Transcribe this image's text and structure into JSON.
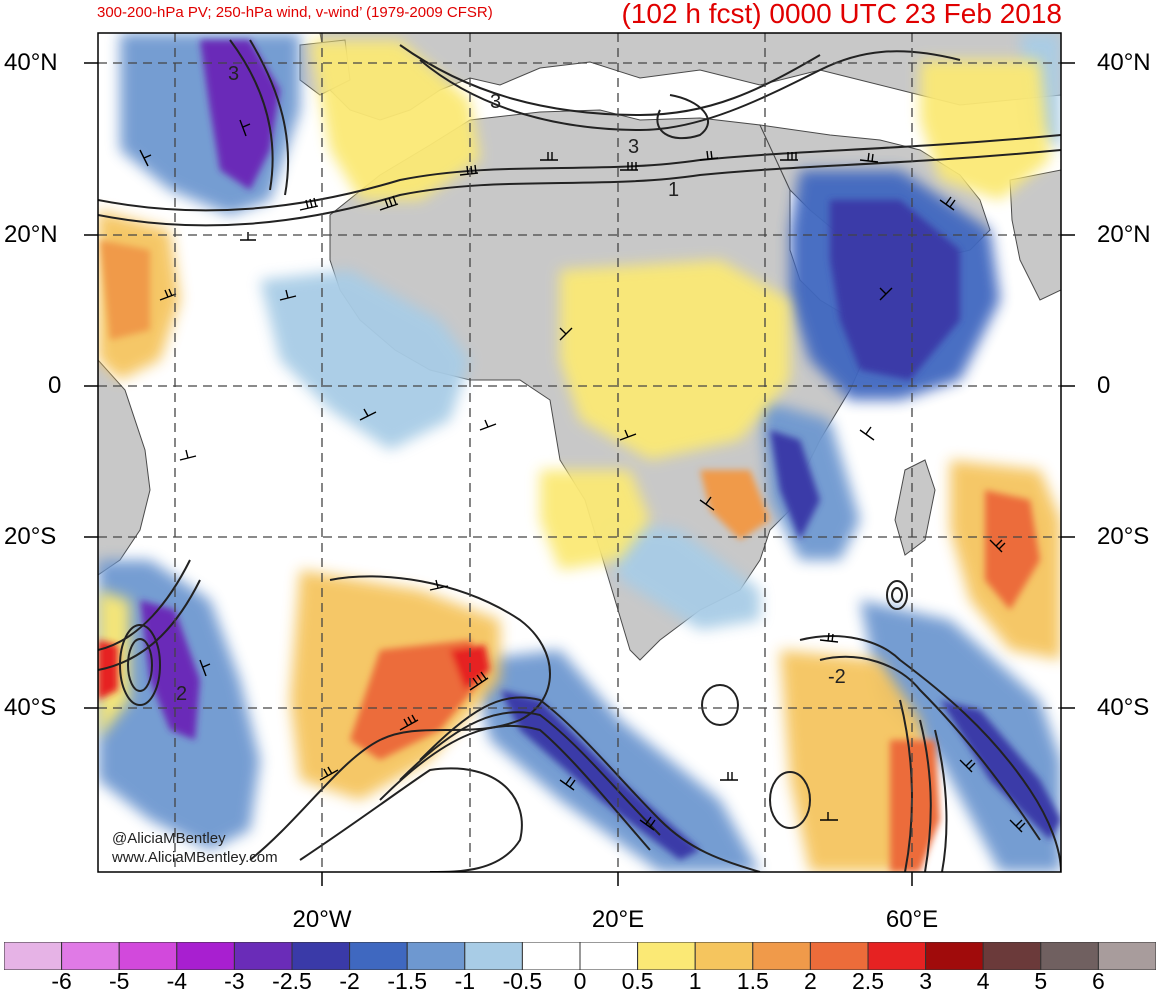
{
  "header": {
    "subtitle": "300-200-hPa PV; 250-hPa wind, v-wind’ (1979-2009 CFSR)",
    "title": "(102 h fcst) 0000 UTC 23 Feb 2018"
  },
  "map": {
    "region": "Africa and surrounding Atlantic / Indian Oceans",
    "lat_labels_left": [
      "40°N",
      "20°N",
      "0",
      "20°S",
      "40°S"
    ],
    "lat_labels_right": [
      "40°N",
      "20°N",
      "0",
      "20°S",
      "40°S"
    ],
    "lon_labels": [
      "20°W",
      "20°E",
      "60°E"
    ],
    "contour_labels": [
      "3",
      "3",
      "3",
      "1",
      "2",
      "-2"
    ],
    "gridlines": "dashed",
    "land_color": "#c8c8c8",
    "contour_color": "#222222"
  },
  "credits": {
    "handle": "@AliciaMBentley",
    "website": "www.AliciaMBentley.com"
  },
  "colorbar": {
    "labels": [
      "-6",
      "-5",
      "-4",
      "-3",
      "-2.5",
      "-2",
      "-1.5",
      "-1",
      "-0.5",
      "0",
      "0.5",
      "1",
      "1.5",
      "2",
      "2.5",
      "3",
      "4",
      "5",
      "6"
    ],
    "colors": [
      "#e6b3e6",
      "#e07ae6",
      "#d249dc",
      "#a81fd0",
      "#6a2cb8",
      "#3a3aa8",
      "#3f68c0",
      "#6e98d0",
      "#a8cce6",
      "#ffffff",
      "#ffffff",
      "#fbe975",
      "#f5c55e",
      "#f09a4a",
      "#ec6c3a",
      "#e62222",
      "#a00b0b",
      "#6b3a3a",
      "#706060",
      "#a89c9c"
    ]
  }
}
